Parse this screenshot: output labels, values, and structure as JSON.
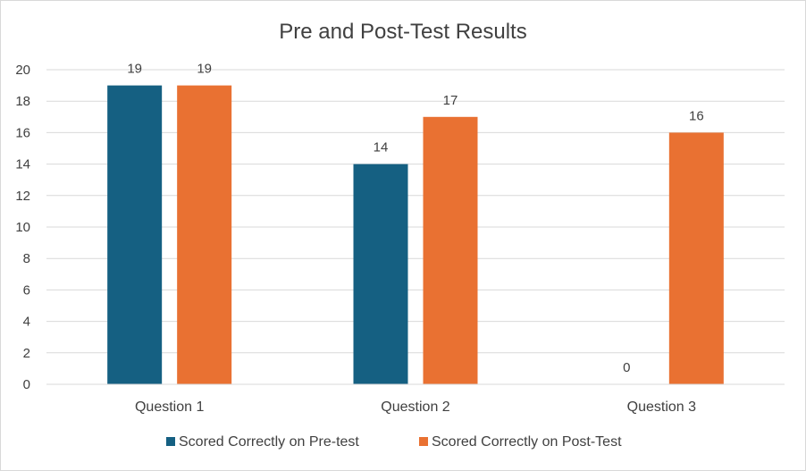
{
  "chart_data": {
    "type": "bar",
    "title": "Pre and Post-Test Results",
    "categories": [
      "Question 1",
      "Question 2",
      "Question 3"
    ],
    "series": [
      {
        "name": "Scored Correctly on Pre-test",
        "values": [
          19,
          14,
          0
        ],
        "color": "#156082"
      },
      {
        "name": "Scored Correctly on Post-Test",
        "values": [
          19,
          17,
          16
        ],
        "color": "#E97132"
      }
    ],
    "ylim": [
      0,
      20
    ],
    "yticks": [
      0,
      2,
      4,
      6,
      8,
      10,
      12,
      14,
      16,
      18,
      20
    ],
    "grid": true,
    "legend_position": "bottom",
    "gridline_color": "#d9d9d9"
  }
}
